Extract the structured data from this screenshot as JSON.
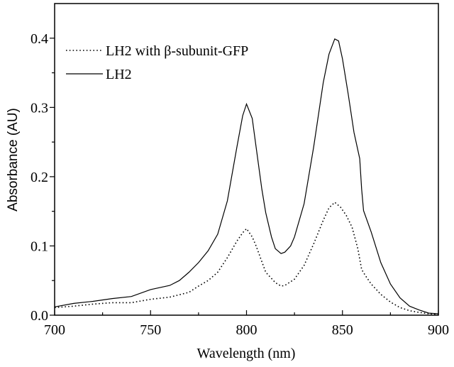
{
  "chart_data": {
    "type": "line",
    "title": "",
    "xlabel": "Wavelength (nm)",
    "ylabel": "Absorbance (AU)",
    "xlim": [
      700,
      900
    ],
    "ylim": [
      0,
      0.45
    ],
    "xticks": [
      "700",
      "750",
      "800",
      "850",
      "900"
    ],
    "yticks": [
      "0.0",
      "0.1",
      "0.2",
      "0.3",
      "0.4"
    ],
    "grid": false,
    "legend_position": "top-left",
    "series": [
      {
        "name": "LH2 with β-subunit-GFP",
        "style": "dotted",
        "color": "#000000",
        "x": [
          700,
          710,
          720,
          730,
          740,
          750,
          760,
          770,
          775,
          780,
          785,
          790,
          795,
          798,
          800,
          803,
          805,
          810,
          815,
          818,
          820,
          825,
          830,
          835,
          840,
          843,
          846,
          849,
          852,
          855,
          858,
          860,
          862,
          865,
          870,
          875,
          880,
          885,
          890,
          895,
          900
        ],
        "y": [
          0.011,
          0.013,
          0.016,
          0.018,
          0.018,
          0.023,
          0.026,
          0.033,
          0.042,
          0.05,
          0.062,
          0.083,
          0.107,
          0.119,
          0.125,
          0.113,
          0.1,
          0.062,
          0.047,
          0.042,
          0.043,
          0.052,
          0.072,
          0.103,
          0.137,
          0.155,
          0.163,
          0.156,
          0.144,
          0.127,
          0.096,
          0.066,
          0.057,
          0.045,
          0.03,
          0.019,
          0.011,
          0.0065,
          0.004,
          0.002,
          0.001
        ]
      },
      {
        "name": "LH2",
        "style": "solid",
        "color": "#000000",
        "x": [
          700,
          710,
          720,
          730,
          740,
          750,
          760,
          765,
          770,
          775,
          780,
          785,
          790,
          795,
          798,
          800,
          803,
          805,
          808,
          810,
          813,
          815,
          818,
          820,
          823,
          825,
          830,
          835,
          840,
          843,
          846,
          848,
          850,
          853,
          856,
          859,
          860,
          861,
          865,
          870,
          875,
          880,
          885,
          890,
          895,
          900
        ],
        "y": [
          0.012,
          0.017,
          0.02,
          0.024,
          0.027,
          0.037,
          0.043,
          0.05,
          0.062,
          0.076,
          0.093,
          0.117,
          0.165,
          0.243,
          0.288,
          0.305,
          0.284,
          0.243,
          0.182,
          0.148,
          0.113,
          0.096,
          0.089,
          0.091,
          0.1,
          0.113,
          0.161,
          0.243,
          0.336,
          0.377,
          0.399,
          0.396,
          0.37,
          0.319,
          0.264,
          0.226,
          0.182,
          0.151,
          0.12,
          0.076,
          0.045,
          0.025,
          0.013,
          0.0075,
          0.003,
          0.002
        ]
      }
    ]
  }
}
